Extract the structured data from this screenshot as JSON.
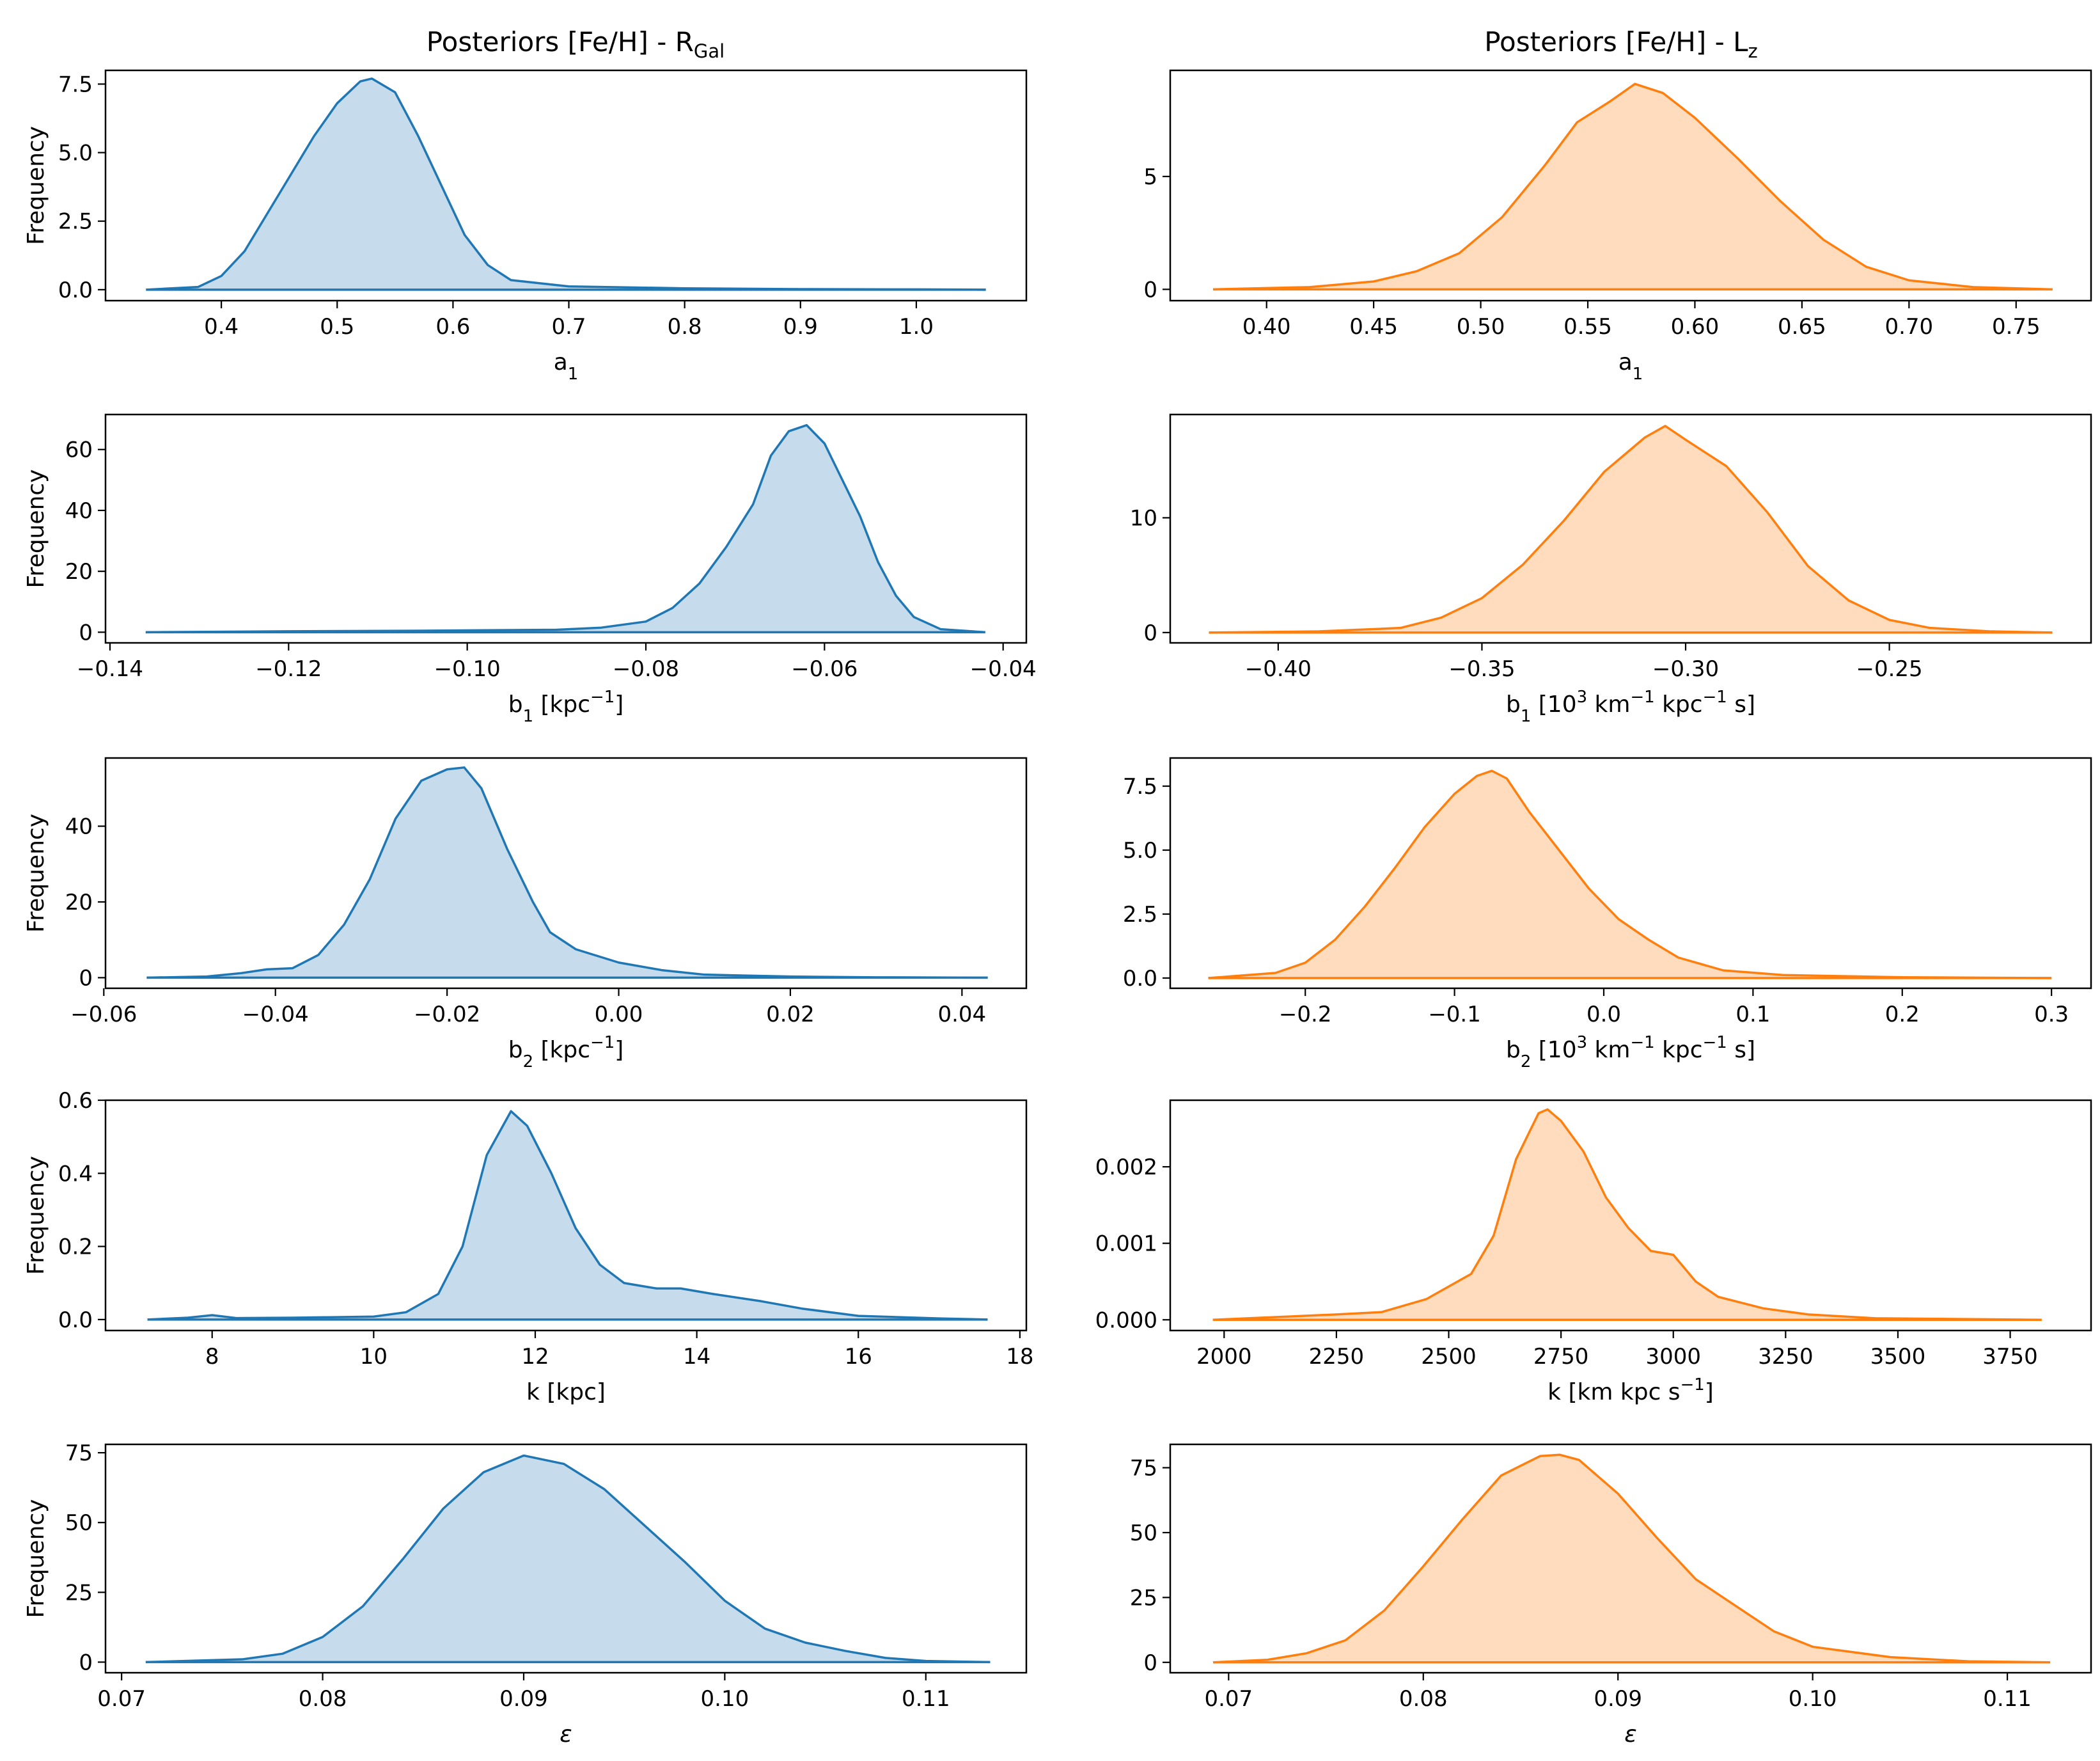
{
  "titles": {
    "left": {
      "main": "Posteriors [Fe/H] - R",
      "sub": "Gal"
    },
    "right": {
      "main": "Posteriors [Fe/H] - L",
      "sub": "z"
    }
  },
  "colors": {
    "left_line": "#1f77b4",
    "left_fill": "#c6dbec",
    "right_line": "#ff7f0e",
    "right_fill": "#ffdcbd"
  },
  "chart_data": [
    {
      "type": "area",
      "column": "left",
      "row": 0,
      "ylabel": "Frequency",
      "xlabel": [
        {
          "t": "a"
        },
        {
          "t": "1",
          "s": "sub"
        }
      ],
      "xlim": [
        0.3,
        1.095
      ],
      "ylim": [
        -0.4,
        8.0
      ],
      "xticks": [
        0.4,
        0.5,
        0.6,
        0.7,
        0.8,
        0.9,
        1.0
      ],
      "xtick_labels": [
        "0.4",
        "0.5",
        "0.6",
        "0.7",
        "0.8",
        "0.9",
        "1.0"
      ],
      "yticks": [
        0.0,
        2.5,
        5.0,
        7.5
      ],
      "ytick_labels": [
        "0.0",
        "2.5",
        "5.0",
        "7.5"
      ],
      "x": [
        0.335,
        0.38,
        0.4,
        0.42,
        0.45,
        0.48,
        0.5,
        0.52,
        0.53,
        0.55,
        0.57,
        0.59,
        0.61,
        0.63,
        0.65,
        0.7,
        0.8,
        0.9,
        1.0,
        1.06
      ],
      "y": [
        0.0,
        0.1,
        0.5,
        1.4,
        3.5,
        5.6,
        6.8,
        7.6,
        7.7,
        7.2,
        5.6,
        3.8,
        2.0,
        0.9,
        0.35,
        0.12,
        0.05,
        0.02,
        0.01,
        0.0
      ]
    },
    {
      "type": "area",
      "column": "right",
      "row": 0,
      "ylabel": "",
      "xlabel": [
        {
          "t": "a"
        },
        {
          "t": "1",
          "s": "sub"
        }
      ],
      "xlim": [
        0.355,
        0.785
      ],
      "ylim": [
        -0.5,
        9.7
      ],
      "xticks": [
        0.4,
        0.45,
        0.5,
        0.55,
        0.6,
        0.65,
        0.7,
        0.75
      ],
      "xtick_labels": [
        "0.40",
        "0.45",
        "0.50",
        "0.55",
        "0.60",
        "0.65",
        "0.70",
        "0.75"
      ],
      "yticks": [
        0,
        5
      ],
      "ytick_labels": [
        "0",
        "5"
      ],
      "x": [
        0.375,
        0.42,
        0.45,
        0.47,
        0.49,
        0.51,
        0.53,
        0.545,
        0.56,
        0.572,
        0.585,
        0.6,
        0.62,
        0.64,
        0.66,
        0.68,
        0.7,
        0.73,
        0.767
      ],
      "y": [
        0.0,
        0.1,
        0.35,
        0.8,
        1.6,
        3.2,
        5.5,
        7.4,
        8.3,
        9.1,
        8.7,
        7.6,
        5.8,
        3.9,
        2.2,
        1.0,
        0.4,
        0.1,
        0.0
      ]
    },
    {
      "type": "area",
      "column": "left",
      "row": 1,
      "ylabel": "Frequency",
      "xlabel": [
        {
          "t": "b"
        },
        {
          "t": "1",
          "s": "sub"
        },
        {
          "t": " [kpc"
        },
        {
          "t": "−1",
          "s": "sup"
        },
        {
          "t": "]"
        }
      ],
      "xlim": [
        -0.1405,
        -0.0374
      ],
      "ylim": [
        -3.5,
        71.5
      ],
      "xticks": [
        -0.14,
        -0.12,
        -0.1,
        -0.08,
        -0.06,
        -0.04
      ],
      "xtick_labels": [
        "−0.14",
        "−0.12",
        "−0.10",
        "−0.08",
        "−0.06",
        "−0.04"
      ],
      "yticks": [
        0,
        20,
        40,
        60
      ],
      "ytick_labels": [
        "0",
        "20",
        "40",
        "60"
      ],
      "x": [
        -0.136,
        -0.12,
        -0.105,
        -0.09,
        -0.085,
        -0.08,
        -0.077,
        -0.074,
        -0.071,
        -0.068,
        -0.066,
        -0.064,
        -0.062,
        -0.06,
        -0.058,
        -0.056,
        -0.054,
        -0.052,
        -0.05,
        -0.047,
        -0.042
      ],
      "y": [
        0.0,
        0.3,
        0.5,
        0.8,
        1.5,
        3.5,
        8.0,
        16.0,
        28.0,
        42.0,
        58.0,
        66.0,
        68.0,
        62.0,
        50.0,
        38.0,
        23.0,
        12.0,
        5.0,
        1.0,
        0.0
      ]
    },
    {
      "type": "area",
      "column": "right",
      "row": 1,
      "ylabel": "",
      "xlabel": [
        {
          "t": "b"
        },
        {
          "t": "1",
          "s": "sub"
        },
        {
          "t": " [10"
        },
        {
          "t": "3",
          "s": "sup"
        },
        {
          "t": " km"
        },
        {
          "t": "−1",
          "s": "sup"
        },
        {
          "t": " kpc"
        },
        {
          "t": "−1",
          "s": "sup"
        },
        {
          "t": " s]"
        }
      ],
      "xlim": [
        -0.4265,
        -0.2005
      ],
      "ylim": [
        -0.9,
        19.0
      ],
      "xticks": [
        -0.4,
        -0.35,
        -0.3,
        -0.25
      ],
      "xtick_labels": [
        "−0.40",
        "−0.35",
        "−0.30",
        "−0.25"
      ],
      "yticks": [
        0,
        10
      ],
      "ytick_labels": [
        "0",
        "10"
      ],
      "x": [
        -0.417,
        -0.39,
        -0.37,
        -0.36,
        -0.35,
        -0.34,
        -0.33,
        -0.32,
        -0.31,
        -0.305,
        -0.3,
        -0.29,
        -0.28,
        -0.27,
        -0.26,
        -0.25,
        -0.24,
        -0.225,
        -0.21
      ],
      "y": [
        0.0,
        0.1,
        0.4,
        1.3,
        3.0,
        5.9,
        9.7,
        14.0,
        17.0,
        18.0,
        16.8,
        14.5,
        10.5,
        5.8,
        2.8,
        1.1,
        0.4,
        0.1,
        0.0
      ]
    },
    {
      "type": "area",
      "column": "left",
      "row": 2,
      "ylabel": "Frequency",
      "xlabel": [
        {
          "t": "b"
        },
        {
          "t": "2",
          "s": "sub"
        },
        {
          "t": " [kpc"
        },
        {
          "t": "−1",
          "s": "sup"
        },
        {
          "t": "]"
        }
      ],
      "xlim": [
        -0.0598,
        0.0475
      ],
      "ylim": [
        -2.8,
        58.0
      ],
      "xticks": [
        -0.06,
        -0.04,
        -0.02,
        0.0,
        0.02,
        0.04
      ],
      "xtick_labels": [
        "−0.06",
        "−0.04",
        "−0.02",
        "0.00",
        "0.02",
        "0.04"
      ],
      "yticks": [
        0,
        20,
        40
      ],
      "ytick_labels": [
        "0",
        "20",
        "40"
      ],
      "x": [
        -0.055,
        -0.048,
        -0.044,
        -0.041,
        -0.038,
        -0.035,
        -0.032,
        -0.029,
        -0.026,
        -0.023,
        -0.02,
        -0.018,
        -0.016,
        -0.013,
        -0.01,
        -0.008,
        -0.005,
        0.0,
        0.005,
        0.01,
        0.02,
        0.03,
        0.043
      ],
      "y": [
        0.0,
        0.3,
        1.2,
        2.2,
        2.5,
        6.0,
        14.0,
        26.0,
        42.0,
        52.0,
        55.0,
        55.5,
        50.0,
        34.0,
        20.0,
        12.0,
        7.5,
        4.0,
        2.0,
        0.8,
        0.3,
        0.1,
        0.0
      ]
    },
    {
      "type": "area",
      "column": "right",
      "row": 2,
      "ylabel": "",
      "xlabel": [
        {
          "t": "b"
        },
        {
          "t": "2",
          "s": "sub"
        },
        {
          "t": " [10"
        },
        {
          "t": "3",
          "s": "sup"
        },
        {
          "t": " km"
        },
        {
          "t": "−1",
          "s": "sup"
        },
        {
          "t": " kpc"
        },
        {
          "t": "−1",
          "s": "sup"
        },
        {
          "t": " s]"
        }
      ],
      "xlim": [
        -0.2905,
        0.3265
      ],
      "ylim": [
        -0.4,
        8.6
      ],
      "xticks": [
        -0.2,
        -0.1,
        0.0,
        0.1,
        0.2,
        0.3
      ],
      "xtick_labels": [
        "−0.2",
        "−0.1",
        "0.0",
        "0.1",
        "0.2",
        "0.3"
      ],
      "yticks": [
        0.0,
        2.5,
        5.0,
        7.5
      ],
      "ytick_labels": [
        "0.0",
        "2.5",
        "5.0",
        "7.5"
      ],
      "x": [
        -0.265,
        -0.22,
        -0.2,
        -0.18,
        -0.16,
        -0.14,
        -0.12,
        -0.1,
        -0.085,
        -0.075,
        -0.065,
        -0.05,
        -0.03,
        -0.01,
        0.01,
        0.03,
        0.05,
        0.08,
        0.12,
        0.2,
        0.3
      ],
      "y": [
        0.0,
        0.2,
        0.6,
        1.5,
        2.8,
        4.3,
        5.9,
        7.2,
        7.9,
        8.1,
        7.8,
        6.5,
        5.0,
        3.5,
        2.3,
        1.5,
        0.8,
        0.3,
        0.12,
        0.03,
        0.0
      ]
    },
    {
      "type": "area",
      "column": "left",
      "row": 3,
      "ylabel": "Frequency",
      "xlabel": [
        {
          "t": "k [kpc]"
        }
      ],
      "xlim": [
        6.68,
        18.08
      ],
      "ylim": [
        -0.03,
        0.6
      ],
      "xticks": [
        8,
        10,
        12,
        14,
        16,
        18
      ],
      "xtick_labels": [
        "8",
        "10",
        "12",
        "14",
        "16",
        "18"
      ],
      "yticks": [
        0.0,
        0.2,
        0.4,
        0.6
      ],
      "ytick_labels": [
        "0.0",
        "0.2",
        "0.4",
        "0.6"
      ],
      "x": [
        7.2,
        7.7,
        8.0,
        8.3,
        9.0,
        10.0,
        10.4,
        10.8,
        11.1,
        11.4,
        11.7,
        11.9,
        12.2,
        12.5,
        12.8,
        13.1,
        13.5,
        13.8,
        14.2,
        14.8,
        15.3,
        16.0,
        17.0,
        17.6
      ],
      "y": [
        0.0,
        0.005,
        0.012,
        0.004,
        0.005,
        0.008,
        0.02,
        0.07,
        0.2,
        0.45,
        0.57,
        0.53,
        0.4,
        0.25,
        0.15,
        0.1,
        0.085,
        0.085,
        0.07,
        0.05,
        0.03,
        0.01,
        0.003,
        0.0
      ]
    },
    {
      "type": "area",
      "column": "right",
      "row": 3,
      "ylabel": "",
      "xlabel": [
        {
          "t": "k [km kpc s"
        },
        {
          "t": "−1",
          "s": "sup"
        },
        {
          "t": "]"
        }
      ],
      "xlim": [
        1880,
        3930
      ],
      "ylim": [
        -0.00014,
        0.00287
      ],
      "xticks": [
        2000,
        2250,
        2500,
        2750,
        3000,
        3250,
        3500,
        3750
      ],
      "xtick_labels": [
        "2000",
        "2250",
        "2500",
        "2750",
        "3000",
        "3250",
        "3500",
        "3750"
      ],
      "yticks": [
        0.0,
        0.001,
        0.002
      ],
      "ytick_labels": [
        "0.000",
        "0.001",
        "0.002"
      ],
      "x": [
        1975,
        2250,
        2350,
        2450,
        2550,
        2600,
        2650,
        2700,
        2720,
        2750,
        2800,
        2850,
        2900,
        2950,
        3000,
        3050,
        3100,
        3200,
        3300,
        3450,
        3820
      ],
      "y": [
        0.0,
        7e-05,
        0.0001,
        0.00027,
        0.0006,
        0.0011,
        0.0021,
        0.0027,
        0.00275,
        0.0026,
        0.0022,
        0.0016,
        0.0012,
        0.0009,
        0.00085,
        0.0005,
        0.0003,
        0.00015,
        7e-05,
        2e-05,
        0.0
      ]
    },
    {
      "type": "area",
      "column": "left",
      "row": 4,
      "ylabel": "Frequency",
      "xlabel": [
        {
          "t": "ε",
          "s": "it"
        }
      ],
      "xlim": [
        0.0692,
        0.115
      ],
      "ylim": [
        -3.8,
        78.0
      ],
      "xticks": [
        0.07,
        0.08,
        0.09,
        0.1,
        0.11
      ],
      "xtick_labels": [
        "0.07",
        "0.08",
        "0.09",
        "0.10",
        "0.11"
      ],
      "yticks": [
        0,
        25,
        50,
        75
      ],
      "ytick_labels": [
        "0",
        "25",
        "50",
        "75"
      ],
      "x": [
        0.0712,
        0.076,
        0.078,
        0.08,
        0.082,
        0.084,
        0.086,
        0.088,
        0.09,
        0.092,
        0.094,
        0.096,
        0.098,
        0.1,
        0.102,
        0.104,
        0.106,
        0.108,
        0.11,
        0.1132
      ],
      "y": [
        0.0,
        1.0,
        3.0,
        9.0,
        20.0,
        37.0,
        55.0,
        68.0,
        74.0,
        71.0,
        62.0,
        49.0,
        36.0,
        22.0,
        12.0,
        7.0,
        4.0,
        1.5,
        0.4,
        0.0
      ]
    },
    {
      "type": "area",
      "column": "right",
      "row": 4,
      "ylabel": "",
      "xlabel": [
        {
          "t": "ε",
          "s": "it"
        }
      ],
      "xlim": [
        0.067,
        0.1143
      ],
      "ylim": [
        -4.0,
        84.0
      ],
      "xticks": [
        0.07,
        0.08,
        0.09,
        0.1,
        0.11
      ],
      "xtick_labels": [
        "0.07",
        "0.08",
        "0.09",
        "0.10",
        "0.11"
      ],
      "yticks": [
        0,
        25,
        50,
        75
      ],
      "ytick_labels": [
        "0",
        "25",
        "50",
        "75"
      ],
      "x": [
        0.0692,
        0.072,
        0.074,
        0.076,
        0.078,
        0.08,
        0.082,
        0.084,
        0.086,
        0.087,
        0.088,
        0.09,
        0.092,
        0.094,
        0.096,
        0.098,
        0.1,
        0.104,
        0.108,
        0.1122
      ],
      "y": [
        0.0,
        1.0,
        3.5,
        8.5,
        20.0,
        37.0,
        55.0,
        72.0,
        79.5,
        80.0,
        78.0,
        65.0,
        48.0,
        32.0,
        22.0,
        12.0,
        6.0,
        2.0,
        0.4,
        0.0
      ]
    }
  ]
}
